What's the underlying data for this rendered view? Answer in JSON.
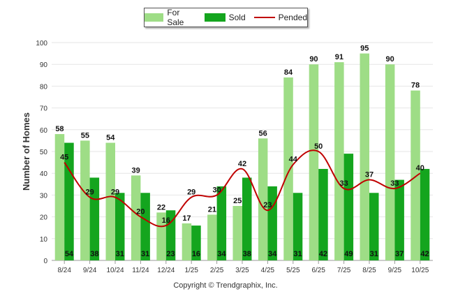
{
  "chart_data": {
    "type": "bar",
    "title": "",
    "xlabel": "",
    "ylabel": "Number of Homes",
    "ylim": [
      0,
      100
    ],
    "yticks": [
      0,
      10,
      20,
      30,
      40,
      50,
      60,
      70,
      80,
      90,
      100
    ],
    "categories": [
      "8/24",
      "9/24",
      "10/24",
      "11/24",
      "12/24",
      "1/25",
      "2/25",
      "3/25",
      "4/25",
      "5/25",
      "6/25",
      "7/25",
      "8/25",
      "9/25",
      "10/25"
    ],
    "series": [
      {
        "name": "For Sale",
        "type": "bar",
        "color": "#9edd86",
        "values": [
          58,
          55,
          54,
          39,
          22,
          17,
          21,
          25,
          56,
          84,
          90,
          91,
          95,
          90,
          78
        ]
      },
      {
        "name": "Sold",
        "type": "bar",
        "color": "#14a51e",
        "values": [
          54,
          38,
          31,
          31,
          23,
          16,
          34,
          38,
          34,
          31,
          42,
          49,
          31,
          37,
          42
        ]
      },
      {
        "name": "Pended",
        "type": "line",
        "color": "#c00000",
        "values": [
          45,
          29,
          29,
          20,
          16,
          29,
          30,
          42,
          23,
          44,
          50,
          33,
          37,
          33,
          40
        ]
      }
    ],
    "legend_position": "top-center",
    "grid": true
  },
  "copyright": "Copyright © Trendgraphix, Inc."
}
